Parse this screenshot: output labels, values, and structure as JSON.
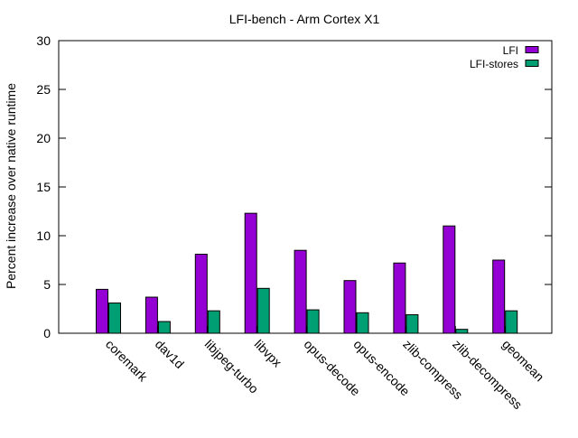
{
  "chart_data": {
    "type": "bar",
    "title": "LFI-bench - Arm Cortex X1",
    "xlabel": "",
    "ylabel": "Percent increase over native runtime",
    "ylim": [
      0,
      30
    ],
    "yticks": [
      0,
      5,
      10,
      15,
      20,
      25,
      30
    ],
    "grid": false,
    "legend_position": "top-right",
    "categories": [
      "coremark",
      "dav1d",
      "libjpeg-turbo",
      "libvpx",
      "opus-decode",
      "opus-encode",
      "zlib-compress",
      "zlib-decompress",
      "geomean"
    ],
    "series": [
      {
        "name": "LFI",
        "color": "#9400D3",
        "values": [
          4.5,
          3.7,
          8.1,
          12.3,
          8.5,
          5.4,
          7.2,
          11.0,
          7.5
        ]
      },
      {
        "name": "LFI-stores",
        "color": "#009E73",
        "values": [
          3.1,
          1.2,
          2.3,
          4.6,
          2.4,
          2.1,
          1.9,
          0.4,
          2.3
        ]
      }
    ]
  }
}
